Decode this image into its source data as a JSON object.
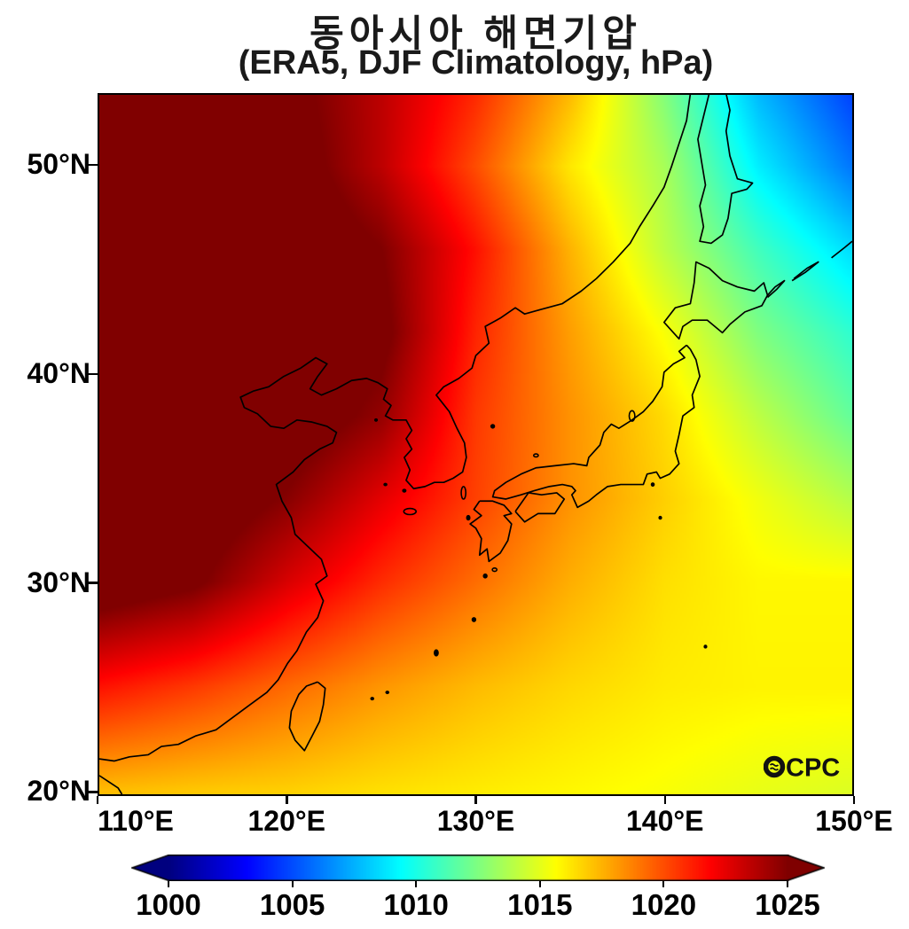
{
  "title": {
    "line1": "동아시아 해면기압",
    "line2": "(ERA5, DJF Climatology, hPa)"
  },
  "watermark": {
    "label": "OCPC",
    "cpc": "CPC"
  },
  "axes": {
    "x_ticks": [
      {
        "value": 110,
        "label": "110°E"
      },
      {
        "value": 120,
        "label": "120°E"
      },
      {
        "value": 130,
        "label": "130°E"
      },
      {
        "value": 140,
        "label": "140°E"
      },
      {
        "value": 150,
        "label": "150°E"
      }
    ],
    "y_ticks": [
      {
        "value": 50,
        "label": "50°N"
      },
      {
        "value": 40,
        "label": "40°N"
      },
      {
        "value": 30,
        "label": "30°N"
      },
      {
        "value": 20,
        "label": "20°N"
      }
    ]
  },
  "colorbar": {
    "vmin": 1000,
    "vmax": 1025,
    "colormap": "jet",
    "extend": "both",
    "ticks": [
      {
        "value": 1000,
        "label": "1000"
      },
      {
        "value": 1005,
        "label": "1005"
      },
      {
        "value": 1010,
        "label": "1010"
      },
      {
        "value": 1015,
        "label": "1015"
      },
      {
        "value": 1020,
        "label": "1020"
      },
      {
        "value": 1025,
        "label": "1025"
      }
    ]
  },
  "colors": {
    "coastline": "#000000",
    "frame": "#000000",
    "background": "#ffffff",
    "overflow_dark_red": "#7f0000",
    "underflow_dark_blue": "#00007f"
  },
  "chart_data": {
    "type": "heatmap",
    "title": "동아시아 해면기압",
    "subtitle": "(ERA5, DJF Climatology, hPa)",
    "variable": "sea level pressure climatology (DJF)",
    "units": "hPa",
    "source_label": "ERA5",
    "lon_range": [
      110,
      150
    ],
    "lat_range": [
      19.8,
      53.44
    ],
    "colorbar_range": [
      1000,
      1025
    ],
    "colormap": "jet",
    "x_tick_values": [
      110,
      120,
      130,
      140,
      150
    ],
    "y_tick_values": [
      50,
      40,
      30,
      20
    ],
    "grid": {
      "lons": [
        110,
        115,
        120,
        125,
        130,
        135,
        140,
        145,
        150
      ],
      "lats": [
        54,
        50,
        46,
        42,
        38,
        34,
        30,
        25,
        20
      ],
      "values_hpa": [
        [
          1028.5,
          1027.5,
          1025.5,
          1023.5,
          1021.0,
          1017.5,
          1012.5,
          1007.5,
          1004.5
        ],
        [
          1028.5,
          1027.8,
          1026.0,
          1023.5,
          1020.0,
          1016.2,
          1013.5,
          1009.0,
          1006.0
        ],
        [
          1028.5,
          1028.0,
          1026.5,
          1025.0,
          1021.5,
          1017.5,
          1014.0,
          1011.0,
          1008.5
        ],
        [
          1028.0,
          1027.5,
          1026.5,
          1025.5,
          1021.0,
          1018.0,
          1015.5,
          1012.5,
          1010.5
        ],
        [
          1027.5,
          1027.0,
          1026.2,
          1024.5,
          1020.5,
          1018.3,
          1016.5,
          1014.0,
          1011.8
        ],
        [
          1027.0,
          1026.3,
          1024.8,
          1022.5,
          1020.3,
          1018.3,
          1016.8,
          1015.3,
          1013.8
        ],
        [
          1026.3,
          1025.3,
          1022.8,
          1020.8,
          1019.2,
          1017.6,
          1016.4,
          1015.8,
          1015.8
        ],
        [
          1021.5,
          1020.5,
          1019.3,
          1018.2,
          1017.3,
          1016.6,
          1016.1,
          1015.9,
          1015.9
        ],
        [
          1017.3,
          1017.0,
          1016.8,
          1016.4,
          1016.1,
          1015.8,
          1015.5,
          1015.1,
          1014.8
        ]
      ]
    },
    "coastlines": [
      [
        [
          110,
          21.5
        ],
        [
          110.8,
          21.4
        ],
        [
          111.6,
          21.6
        ],
        [
          112.6,
          21.7
        ],
        [
          113.3,
          22.1
        ],
        [
          114.2,
          22.2
        ],
        [
          115.1,
          22.6
        ],
        [
          116.2,
          22.9
        ],
        [
          117.1,
          23.5
        ],
        [
          118,
          24.1
        ],
        [
          118.9,
          24.7
        ],
        [
          119.5,
          25.3
        ],
        [
          120,
          26.1
        ],
        [
          120.5,
          26.7
        ],
        [
          121,
          27.6
        ],
        [
          121.6,
          28.3
        ],
        [
          121.9,
          29.1
        ],
        [
          121.5,
          29.9
        ],
        [
          122.1,
          30.3
        ],
        [
          121.8,
          31.1
        ],
        [
          121.1,
          31.7
        ],
        [
          120.4,
          32.3
        ],
        [
          120.2,
          33.1
        ],
        [
          119.7,
          33.9
        ],
        [
          119.4,
          34.7
        ],
        [
          120.3,
          35.3
        ],
        [
          120.9,
          35.9
        ],
        [
          121.7,
          36.4
        ],
        [
          122.4,
          36.7
        ],
        [
          122.6,
          37.2
        ],
        [
          122.1,
          37.5
        ],
        [
          121.3,
          37.7
        ],
        [
          120.5,
          37.8
        ],
        [
          119.8,
          37.4
        ],
        [
          119.1,
          37.5
        ],
        [
          118.4,
          38.1
        ],
        [
          117.7,
          38.4
        ],
        [
          117.5,
          38.9
        ],
        [
          118.2,
          39.2
        ],
        [
          119,
          39.4
        ],
        [
          119.8,
          39.9
        ],
        [
          120.7,
          40.3
        ],
        [
          121.5,
          40.8
        ],
        [
          122.1,
          40.5
        ],
        [
          121.6,
          39.9
        ],
        [
          121.2,
          39.3
        ],
        [
          121.8,
          39
        ],
        [
          122.6,
          39.3
        ],
        [
          123.4,
          39.7
        ],
        [
          124.2,
          39.8
        ],
        [
          124.8,
          39.6
        ],
        [
          125.3,
          39.3
        ],
        [
          125.1,
          38.8
        ],
        [
          125.5,
          38.5
        ],
        [
          125.2,
          38
        ],
        [
          125.6,
          37.8
        ],
        [
          126.3,
          37.8
        ],
        [
          126.6,
          37.3
        ],
        [
          126.3,
          36.9
        ],
        [
          126.6,
          36.4
        ],
        [
          126.2,
          36
        ],
        [
          126.5,
          35.4
        ],
        [
          126.3,
          34.9
        ],
        [
          126.7,
          34.5
        ],
        [
          127.3,
          34.6
        ],
        [
          127.8,
          34.8
        ],
        [
          128.3,
          34.8
        ],
        [
          128.8,
          35
        ],
        [
          129.3,
          35.3
        ],
        [
          129.5,
          36
        ],
        [
          129.4,
          36.7
        ],
        [
          129,
          37.4
        ],
        [
          128.6,
          38.2
        ],
        [
          127.9,
          39
        ],
        [
          128.3,
          39.4
        ],
        [
          129.1,
          39.8
        ],
        [
          129.8,
          40.3
        ],
        [
          130,
          40.9
        ],
        [
          130.7,
          41.5
        ],
        [
          130.5,
          42.3
        ],
        [
          131.3,
          42.7
        ],
        [
          132.1,
          43.2
        ],
        [
          132.6,
          42.9
        ],
        [
          133.4,
          43.1
        ],
        [
          134.6,
          43.4
        ],
        [
          135.6,
          44
        ],
        [
          136.4,
          44.6
        ],
        [
          137.3,
          45.4
        ],
        [
          138.2,
          46.3
        ],
        [
          138.7,
          47.1
        ],
        [
          139.4,
          48.1
        ],
        [
          140,
          49
        ],
        [
          140.4,
          50
        ],
        [
          140.8,
          51.1
        ],
        [
          141.2,
          52.2
        ],
        [
          141.4,
          53.5
        ]
      ],
      [
        [
          110,
          20.7
        ],
        [
          110.5,
          20.4
        ],
        [
          111,
          20.1
        ],
        [
          111.2,
          19.8
        ]
      ],
      [
        [
          142.4,
          53.5
        ],
        [
          142.1,
          52.4
        ],
        [
          141.8,
          51.3
        ],
        [
          142,
          50.2
        ],
        [
          142.2,
          49.1
        ],
        [
          141.9,
          48.1
        ],
        [
          142.1,
          47.1
        ],
        [
          141.9,
          46.4
        ],
        [
          142.5,
          46.3
        ],
        [
          143.1,
          46.7
        ],
        [
          143.4,
          47.5
        ],
        [
          143.6,
          48.7
        ],
        [
          144.4,
          48.9
        ],
        [
          144.7,
          49.2
        ],
        [
          143.9,
          49.4
        ],
        [
          143.5,
          50.5
        ],
        [
          143.3,
          51.7
        ],
        [
          143.5,
          52.7
        ],
        [
          143.3,
          53.5
        ]
      ],
      [
        [
          140.4,
          42.1
        ],
        [
          140,
          42.5
        ],
        [
          140.6,
          43.2
        ],
        [
          141.4,
          43.4
        ],
        [
          141.6,
          44.4
        ],
        [
          141.7,
          45.4
        ],
        [
          142.4,
          45.1
        ],
        [
          143.1,
          44.5
        ],
        [
          143.9,
          44.2
        ],
        [
          144.8,
          44
        ],
        [
          145.3,
          44.4
        ],
        [
          145.5,
          43.8
        ],
        [
          145.2,
          43.3
        ],
        [
          144.3,
          43
        ],
        [
          143.5,
          42.4
        ],
        [
          143.1,
          42
        ],
        [
          142.3,
          42.6
        ],
        [
          141.5,
          42.6
        ],
        [
          141,
          42.3
        ],
        [
          140.8,
          41.7
        ],
        [
          140.4,
          42.1
        ]
      ],
      [
        [
          141.2,
          41.4
        ],
        [
          140.8,
          41.1
        ],
        [
          141.1,
          40.8
        ],
        [
          140.5,
          40.5
        ],
        [
          140,
          40.1
        ],
        [
          139.9,
          39.4
        ],
        [
          139.4,
          38.7
        ],
        [
          138.9,
          38.2
        ],
        [
          138.3,
          37.8
        ],
        [
          137.6,
          37.4
        ],
        [
          137.2,
          37.6
        ],
        [
          136.8,
          37.2
        ],
        [
          136.6,
          36.6
        ],
        [
          136,
          36
        ],
        [
          135.9,
          35.6
        ],
        [
          135.2,
          35.7
        ],
        [
          134.2,
          35.6
        ],
        [
          133.2,
          35.5
        ],
        [
          132.4,
          35.2
        ],
        [
          131.6,
          34.8
        ],
        [
          131,
          34.4
        ],
        [
          130.9,
          34.1
        ],
        [
          131.6,
          34
        ],
        [
          132.4,
          34.2
        ],
        [
          133.1,
          34.4
        ],
        [
          133.9,
          34.6
        ],
        [
          134.6,
          34.7
        ],
        [
          135.1,
          34.6
        ],
        [
          135.3,
          34.4
        ],
        [
          135.1,
          34.2
        ],
        [
          135.4,
          33.6
        ],
        [
          136,
          33.9
        ],
        [
          136.4,
          34.2
        ],
        [
          137,
          34.6
        ],
        [
          137.7,
          34.7
        ],
        [
          138.3,
          34.7
        ],
        [
          138.9,
          34.7
        ],
        [
          139.1,
          35.2
        ],
        [
          139.6,
          35.3
        ],
        [
          139.8,
          35
        ],
        [
          140.3,
          35.2
        ],
        [
          140.8,
          35.7
        ],
        [
          140.6,
          36.3
        ],
        [
          140.8,
          37.1
        ],
        [
          141,
          38
        ],
        [
          141.6,
          38.4
        ],
        [
          141.5,
          39
        ],
        [
          141.9,
          39.9
        ],
        [
          141.7,
          40.7
        ],
        [
          141.4,
          41.2
        ],
        [
          141.2,
          41.4
        ]
      ],
      [
        [
          132.1,
          33.4
        ],
        [
          132.6,
          32.9
        ],
        [
          133.3,
          33.3
        ],
        [
          134.2,
          33.3
        ],
        [
          134.7,
          34
        ],
        [
          134.3,
          34.3
        ],
        [
          133.5,
          34.2
        ],
        [
          132.8,
          34.3
        ],
        [
          132.1,
          33.4
        ]
      ],
      [
        [
          130.2,
          33.9
        ],
        [
          130.9,
          33.9
        ],
        [
          131.5,
          33.7
        ],
        [
          131.9,
          33.3
        ],
        [
          131.5,
          33.2
        ],
        [
          131.9,
          32.8
        ],
        [
          131.7,
          32
        ],
        [
          131.3,
          31.4
        ],
        [
          130.7,
          31
        ],
        [
          130.6,
          31.6
        ],
        [
          130.2,
          31.3
        ],
        [
          130.3,
          32.1
        ],
        [
          130,
          32.6
        ],
        [
          129.7,
          32.8
        ],
        [
          130.3,
          33.2
        ],
        [
          129.9,
          33.5
        ],
        [
          130.2,
          33.9
        ]
      ],
      [
        [
          121.6,
          25.2
        ],
        [
          121,
          25
        ],
        [
          120.6,
          24.6
        ],
        [
          120.2,
          23.8
        ],
        [
          120.1,
          23
        ],
        [
          120.4,
          22.4
        ],
        [
          120.9,
          21.9
        ],
        [
          121.3,
          22.6
        ],
        [
          121.7,
          23.3
        ],
        [
          121.9,
          24.1
        ],
        [
          122,
          24.9
        ],
        [
          121.6,
          25.2
        ]
      ],
      [
        [
          145.5,
          43.7
        ],
        [
          146,
          44.1
        ],
        [
          146.4,
          44.5
        ],
        [
          145.9,
          44.2
        ],
        [
          145.5,
          43.8
        ]
      ],
      [
        [
          146.8,
          44.5
        ],
        [
          147.5,
          44.9
        ],
        [
          148.2,
          45.4
        ],
        [
          147.6,
          45.1
        ],
        [
          146.9,
          44.6
        ]
      ],
      [
        [
          148.9,
          45.6
        ],
        [
          149.6,
          46.1
        ],
        [
          150,
          46.4
        ]
      ]
    ],
    "islands": [
      [
        126.5,
        33.4,
        0.33,
        0.15
      ],
      [
        129.35,
        34.3,
        0.12,
        0.3
      ],
      [
        130.9,
        37.5,
        0.09,
        0.08
      ],
      [
        133.2,
        36.1,
        0.12,
        0.07
      ],
      [
        138.3,
        38.0,
        0.15,
        0.25
      ],
      [
        139.4,
        34.7,
        0.07,
        0.07
      ],
      [
        139.8,
        33.1,
        0.06,
        0.06
      ],
      [
        142.2,
        26.9,
        0.06,
        0.06
      ],
      [
        131.0,
        30.6,
        0.12,
        0.08
      ],
      [
        130.5,
        30.3,
        0.09,
        0.09
      ],
      [
        129.9,
        28.2,
        0.09,
        0.09
      ],
      [
        127.9,
        26.6,
        0.1,
        0.14
      ],
      [
        124.5,
        24.4,
        0.07,
        0.05
      ],
      [
        125.3,
        24.7,
        0.07,
        0.05
      ],
      [
        126.2,
        34.4,
        0.08,
        0.06
      ],
      [
        125.2,
        34.7,
        0.07,
        0.05
      ],
      [
        124.7,
        37.8,
        0.06,
        0.05
      ],
      [
        129.6,
        33.1,
        0.08,
        0.1
      ]
    ]
  }
}
